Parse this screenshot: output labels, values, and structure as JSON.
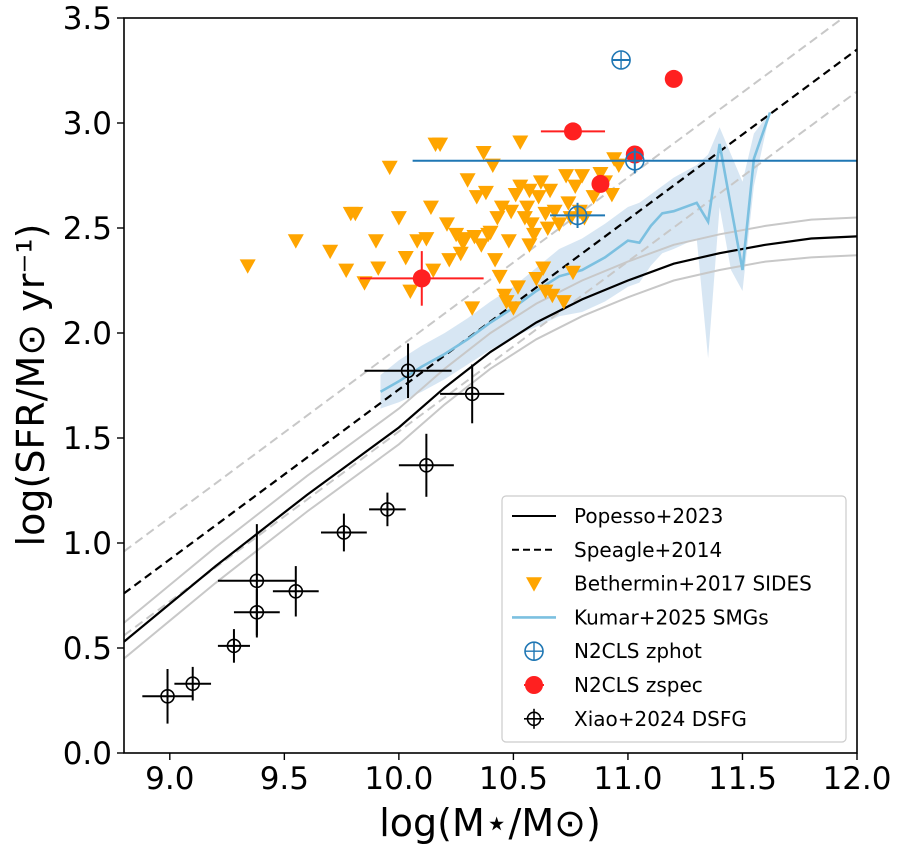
{
  "chart_data": {
    "type": "scatter",
    "xlabel": "log(M⋆/M⊙)",
    "ylabel": "log(SFR/M⊙ yr⁻¹)",
    "xlim": [
      8.8,
      12.0
    ],
    "ylim": [
      0.0,
      3.5
    ],
    "xticks": [
      "9.0",
      "9.5",
      "10.0",
      "10.5",
      "11.0",
      "11.5",
      "12.0"
    ],
    "yticks": [
      "0.0",
      "0.5",
      "1.0",
      "1.5",
      "2.0",
      "2.5",
      "3.0",
      "3.5"
    ],
    "legend_position": "bottom-right",
    "colors": {
      "popesso": "#000000",
      "popesso_band": "#c8c8c8",
      "speagle": "#000000",
      "speagle_band": "#c8c8c8",
      "sides": "#ffa500",
      "kumar": "#7cc0e0",
      "kumar_band": "#c6dcee",
      "n2cls_zphot": "#1f77b4",
      "n2cls_zspec": "#ff2020",
      "xiao": "#000000"
    },
    "legend": [
      {
        "key": "popesso",
        "label": "Popesso+2023"
      },
      {
        "key": "speagle",
        "label": "Speagle+2014"
      },
      {
        "key": "sides",
        "label": "Bethermin+2017 SIDES"
      },
      {
        "key": "kumar",
        "label": "Kumar+2025 SMGs"
      },
      {
        "key": "n2cls_zphot",
        "label": "N2CLS zphot"
      },
      {
        "key": "n2cls_zspec",
        "label": "N2CLS zspec"
      },
      {
        "key": "xiao",
        "label": "Xiao+2024 DSFG"
      }
    ],
    "series": [
      {
        "key": "popesso",
        "name": "Popesso+2023",
        "kind": "line",
        "x": [
          8.8,
          9.0,
          9.2,
          9.4,
          9.6,
          9.8,
          10.0,
          10.2,
          10.4,
          10.6,
          10.8,
          11.0,
          11.2,
          11.4,
          11.6,
          11.8,
          12.0
        ],
        "y": [
          0.53,
          0.71,
          0.89,
          1.06,
          1.23,
          1.39,
          1.55,
          1.74,
          1.91,
          2.05,
          2.16,
          2.25,
          2.33,
          2.38,
          2.42,
          2.45,
          2.46
        ],
        "band_upper": [
          0.62,
          0.8,
          0.98,
          1.15,
          1.32,
          1.48,
          1.64,
          1.83,
          2.0,
          2.14,
          2.25,
          2.34,
          2.42,
          2.47,
          2.51,
          2.54,
          2.55
        ],
        "band_lower": [
          0.45,
          0.63,
          0.81,
          0.98,
          1.15,
          1.31,
          1.47,
          1.66,
          1.83,
          1.97,
          2.08,
          2.17,
          2.25,
          2.3,
          2.34,
          2.36,
          2.37
        ]
      },
      {
        "key": "speagle",
        "name": "Speagle+2014",
        "kind": "line-dashed",
        "x": [
          8.8,
          12.0
        ],
        "y": [
          0.76,
          3.35
        ],
        "band_upper": [
          0.96,
          3.55
        ],
        "band_lower": [
          0.56,
          3.15
        ]
      },
      {
        "key": "kumar",
        "name": "Kumar+2025 SMGs",
        "kind": "line",
        "x": [
          9.92,
          10.0,
          10.1,
          10.2,
          10.3,
          10.4,
          10.5,
          10.6,
          10.7,
          10.8,
          10.9,
          11.0,
          11.05,
          11.1,
          11.15,
          11.2,
          11.3,
          11.35,
          11.4,
          11.45,
          11.5,
          11.55,
          11.62
        ],
        "y": [
          1.72,
          1.77,
          1.84,
          1.9,
          1.97,
          2.05,
          2.12,
          2.2,
          2.27,
          2.3,
          2.36,
          2.44,
          2.43,
          2.51,
          2.57,
          2.58,
          2.62,
          2.53,
          2.9,
          2.6,
          2.3,
          2.83,
          3.05
        ],
        "band_upper": [
          1.8,
          1.87,
          1.94,
          2.0,
          2.07,
          2.15,
          2.22,
          2.31,
          2.4,
          2.45,
          2.52,
          2.6,
          2.62,
          2.66,
          2.7,
          2.74,
          2.8,
          2.85,
          2.98,
          2.85,
          2.72,
          2.95,
          3.05
        ],
        "band_lower": [
          1.64,
          1.67,
          1.72,
          1.78,
          1.85,
          1.92,
          1.98,
          2.03,
          2.08,
          2.1,
          2.15,
          2.22,
          2.24,
          2.32,
          2.38,
          2.4,
          2.45,
          1.88,
          2.6,
          2.3,
          2.2,
          2.7,
          3.05
        ]
      },
      {
        "key": "sides",
        "name": "Bethermin+2017 SIDES",
        "kind": "scatter-triangle",
        "points": [
          [
            9.34,
            2.32
          ],
          [
            9.55,
            2.44
          ],
          [
            9.7,
            2.39
          ],
          [
            9.77,
            2.3
          ],
          [
            9.79,
            2.57
          ],
          [
            9.81,
            2.57
          ],
          [
            9.85,
            2.24
          ],
          [
            9.9,
            2.44
          ],
          [
            9.91,
            2.31
          ],
          [
            9.96,
            2.79
          ],
          [
            10.0,
            2.55
          ],
          [
            10.03,
            2.36
          ],
          [
            10.05,
            2.2
          ],
          [
            10.08,
            2.44
          ],
          [
            10.12,
            2.45
          ],
          [
            10.14,
            2.6
          ],
          [
            10.15,
            2.3
          ],
          [
            10.16,
            2.9
          ],
          [
            10.18,
            2.9
          ],
          [
            10.21,
            2.52
          ],
          [
            10.22,
            2.35
          ],
          [
            10.25,
            2.47
          ],
          [
            10.27,
            2.38
          ],
          [
            10.28,
            2.43
          ],
          [
            10.29,
            2.45
          ],
          [
            10.3,
            2.73
          ],
          [
            10.32,
            2.12
          ],
          [
            10.33,
            2.46
          ],
          [
            10.34,
            2.65
          ],
          [
            10.36,
            2.42
          ],
          [
            10.37,
            2.86
          ],
          [
            10.38,
            2.67
          ],
          [
            10.39,
            2.47
          ],
          [
            10.4,
            2.48
          ],
          [
            10.41,
            2.8
          ],
          [
            10.42,
            2.35
          ],
          [
            10.43,
            2.55
          ],
          [
            10.44,
            2.27
          ],
          [
            10.45,
            2.6
          ],
          [
            10.46,
            2.18
          ],
          [
            10.47,
            2.15
          ],
          [
            10.48,
            2.44
          ],
          [
            10.49,
            2.58
          ],
          [
            10.5,
            2.12
          ],
          [
            10.51,
            2.66
          ],
          [
            10.52,
            2.22
          ],
          [
            10.53,
            2.91
          ],
          [
            10.53,
            2.7
          ],
          [
            10.55,
            2.55
          ],
          [
            10.56,
            2.6
          ],
          [
            10.57,
            2.68
          ],
          [
            10.58,
            2.52
          ],
          [
            10.59,
            2.47
          ],
          [
            10.6,
            2.26
          ],
          [
            10.61,
            2.65
          ],
          [
            10.62,
            2.72
          ],
          [
            10.63,
            2.31
          ],
          [
            10.64,
            2.2
          ],
          [
            10.65,
            2.5
          ],
          [
            10.66,
            2.68
          ],
          [
            10.67,
            2.18
          ],
          [
            10.68,
            2.58
          ],
          [
            10.7,
            2.52
          ],
          [
            10.72,
            2.15
          ],
          [
            10.73,
            2.75
          ],
          [
            10.74,
            2.62
          ],
          [
            10.75,
            2.55
          ],
          [
            10.76,
            2.29
          ],
          [
            10.77,
            2.7
          ],
          [
            10.79,
            2.58
          ],
          [
            10.8,
            2.75
          ],
          [
            10.81,
            2.55
          ],
          [
            10.85,
            2.65
          ],
          [
            10.88,
            2.76
          ],
          [
            10.9,
            2.72
          ],
          [
            10.93,
            2.66
          ],
          [
            10.94,
            2.83
          ],
          [
            10.96,
            2.8
          ],
          [
            10.64,
            2.57
          ],
          [
            10.57,
            2.42
          ]
        ]
      },
      {
        "key": "n2cls_zphot",
        "name": "N2CLS zphot",
        "kind": "scatter-circleplus-err",
        "points": [
          {
            "x": 10.97,
            "y": 3.3,
            "xerr": 0.04,
            "yerr": 0.0
          },
          {
            "x": 11.03,
            "y": 2.82,
            "xerr": 0.97,
            "yerr": 0.06
          },
          {
            "x": 10.78,
            "y": 2.56,
            "xerr": 0.12,
            "yerr": 0.06
          }
        ]
      },
      {
        "key": "n2cls_zspec",
        "name": "N2CLS zspec",
        "kind": "scatter-filled-err",
        "points": [
          {
            "x": 11.2,
            "y": 3.21,
            "xerr": 0.0,
            "yerr": 0.0
          },
          {
            "x": 10.76,
            "y": 2.96,
            "xerr": 0.14,
            "yerr": 0.0
          },
          {
            "x": 11.03,
            "y": 2.85,
            "xerr": 0.0,
            "yerr": 0.0
          },
          {
            "x": 10.88,
            "y": 2.71,
            "xerr": 0.0,
            "yerr": 0.0
          },
          {
            "x": 10.1,
            "y": 2.26,
            "xerr": 0.27,
            "yerr": 0.13
          }
        ]
      },
      {
        "key": "xiao",
        "name": "Xiao+2024 DSFG",
        "kind": "scatter-circleplus-err",
        "points": [
          {
            "x": 8.99,
            "y": 0.27,
            "xerr": 0.11,
            "yerr": 0.13
          },
          {
            "x": 9.1,
            "y": 0.33,
            "xerr": 0.08,
            "yerr": 0.08
          },
          {
            "x": 9.28,
            "y": 0.51,
            "xerr": 0.07,
            "yerr": 0.08
          },
          {
            "x": 9.38,
            "y": 0.82,
            "xerr": 0.17,
            "yerr": 0.27
          },
          {
            "x": 9.38,
            "y": 0.67,
            "xerr": 0.1,
            "yerr": 0.11
          },
          {
            "x": 9.55,
            "y": 0.77,
            "xerr": 0.1,
            "yerr": 0.12
          },
          {
            "x": 9.76,
            "y": 1.05,
            "xerr": 0.1,
            "yerr": 0.09
          },
          {
            "x": 9.95,
            "y": 1.16,
            "xerr": 0.08,
            "yerr": 0.08
          },
          {
            "x": 10.04,
            "y": 1.82,
            "xerr": 0.19,
            "yerr": 0.13
          },
          {
            "x": 10.12,
            "y": 1.37,
            "xerr": 0.12,
            "yerr": 0.15
          },
          {
            "x": 10.32,
            "y": 1.71,
            "xerr": 0.14,
            "yerr": 0.14
          }
        ]
      }
    ]
  }
}
